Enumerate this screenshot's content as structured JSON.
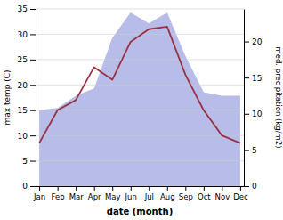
{
  "chart_data": {
    "type": "line",
    "xlabel": "date (month)",
    "ylabel": "max temp (C)",
    "y2label": "med. precipitation (kg/m2)",
    "categories": [
      "Jan",
      "Feb",
      "Mar",
      "Apr",
      "May",
      "Jun",
      "Jul",
      "Aug",
      "Sep",
      "Oct",
      "Nov",
      "Dec"
    ],
    "series": [
      {
        "type": "area",
        "axis": "y2",
        "color": "#b8bce8",
        "values": [
          10.5,
          10.8,
          12.5,
          13.5,
          20.5,
          24.0,
          22.5,
          24.0,
          18.0,
          13.0,
          12.5,
          12.5
        ]
      },
      {
        "type": "line",
        "color": "#993344",
        "values": [
          8.5,
          15.0,
          17.0,
          23.5,
          21.0,
          28.5,
          31.0,
          31.5,
          22.0,
          15.0,
          10.0,
          8.5
        ]
      }
    ],
    "ylim": [
      0,
      35
    ],
    "yticks": [
      0,
      5,
      10,
      15,
      20,
      25,
      30,
      35
    ],
    "y2lim": [
      0,
      24.5
    ],
    "y2ticks": [
      0,
      5,
      10,
      15,
      20
    ],
    "grid": true
  }
}
